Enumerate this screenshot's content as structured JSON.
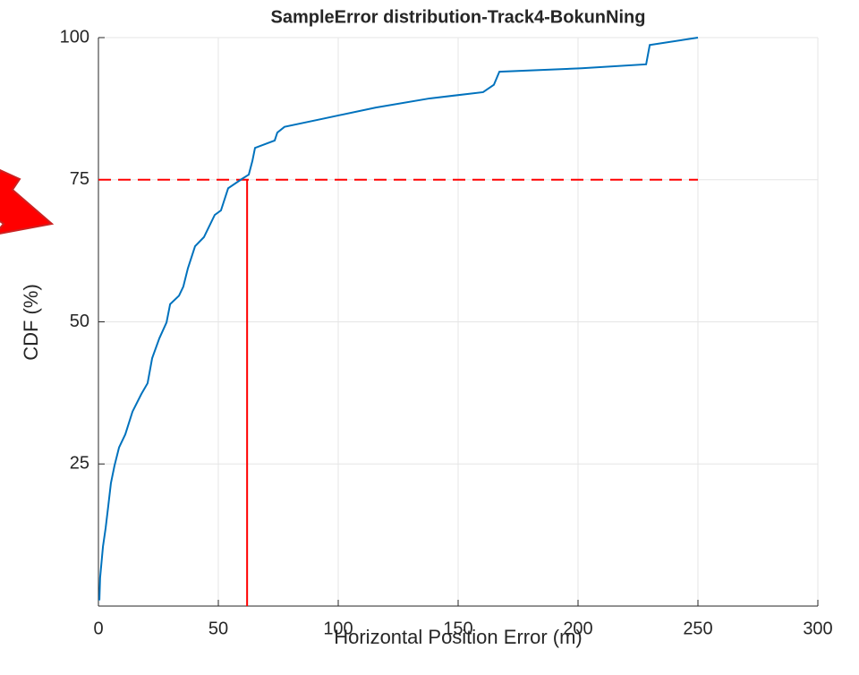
{
  "chart_data": {
    "type": "line",
    "title": "SampleError distribution-Track4-BokunNing",
    "x_label": "Horizontal Position Error (m)",
    "y_label": "CDF (%)",
    "x": [
      0.4,
      0.7,
      1.9,
      3,
      4.1,
      5.2,
      6.7,
      8.6,
      11.2,
      14.2,
      17.9,
      20.5,
      22.4,
      25.4,
      28.4,
      29.9,
      33.6,
      35.4,
      37.3,
      40.3,
      44,
      48.5,
      51.1,
      54.1,
      59.7,
      62.7,
      64.2,
      65.3,
      73.5,
      74.6,
      77.6,
      93.3,
      115.7,
      138.1,
      160.4,
      164.9,
      167.2,
      201.5,
      228.4,
      229.9,
      250
    ],
    "series": [
      {
        "name": "CDF",
        "color": "#0072bd",
        "values": [
          1,
          5,
          10.5,
          13.7,
          17.6,
          21.6,
          24.7,
          27.9,
          30.2,
          34.2,
          37.3,
          39.2,
          43.6,
          47.1,
          49.9,
          53.1,
          54.6,
          56.2,
          59.4,
          63.3,
          64.9,
          68.8,
          69.6,
          73.5,
          75.1,
          75.9,
          78.3,
          80.6,
          81.9,
          83.3,
          84.3,
          85.7,
          87.7,
          89.3,
          90.4,
          91.7,
          94,
          94.6,
          95.3,
          98.7,
          100
        ]
      }
    ],
    "reference_lines": [
      {
        "orientation": "horizontal",
        "value": 75,
        "from": 0,
        "to": 250,
        "color": "#ff0000",
        "dashed": true
      },
      {
        "orientation": "vertical",
        "value": 62,
        "from": 0,
        "to": 75,
        "color": "#ff0000",
        "dashed": false
      }
    ],
    "xlim": [
      0,
      300
    ],
    "xticks": [
      0,
      50,
      100,
      150,
      200,
      250,
      300
    ],
    "ylim": [
      0,
      100
    ],
    "yticks": [
      25,
      50,
      75,
      100
    ],
    "grid": true
  }
}
